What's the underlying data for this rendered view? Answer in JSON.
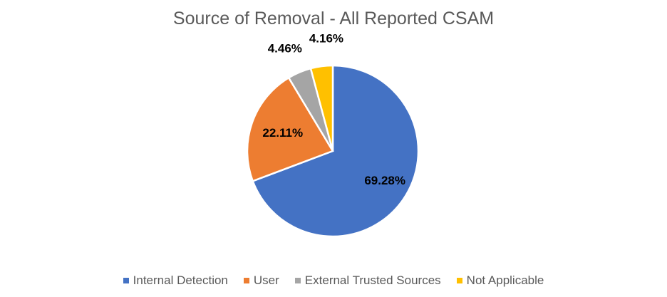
{
  "chart_data": {
    "type": "pie",
    "title": "Source of Removal - All Reported CSAM",
    "categories": [
      "Internal Detection",
      "User",
      "External Trusted Sources",
      "Not Applicable"
    ],
    "values": [
      69.28,
      22.11,
      4.46,
      4.16
    ],
    "data_labels": [
      "69.28%",
      "22.11%",
      "4.46%",
      "4.16%"
    ],
    "colors": [
      "#4472C4",
      "#ED7D31",
      "#A5A5A5",
      "#FFC000"
    ],
    "legend_position": "bottom",
    "start_angle_deg": 0,
    "direction": "clockwise"
  }
}
